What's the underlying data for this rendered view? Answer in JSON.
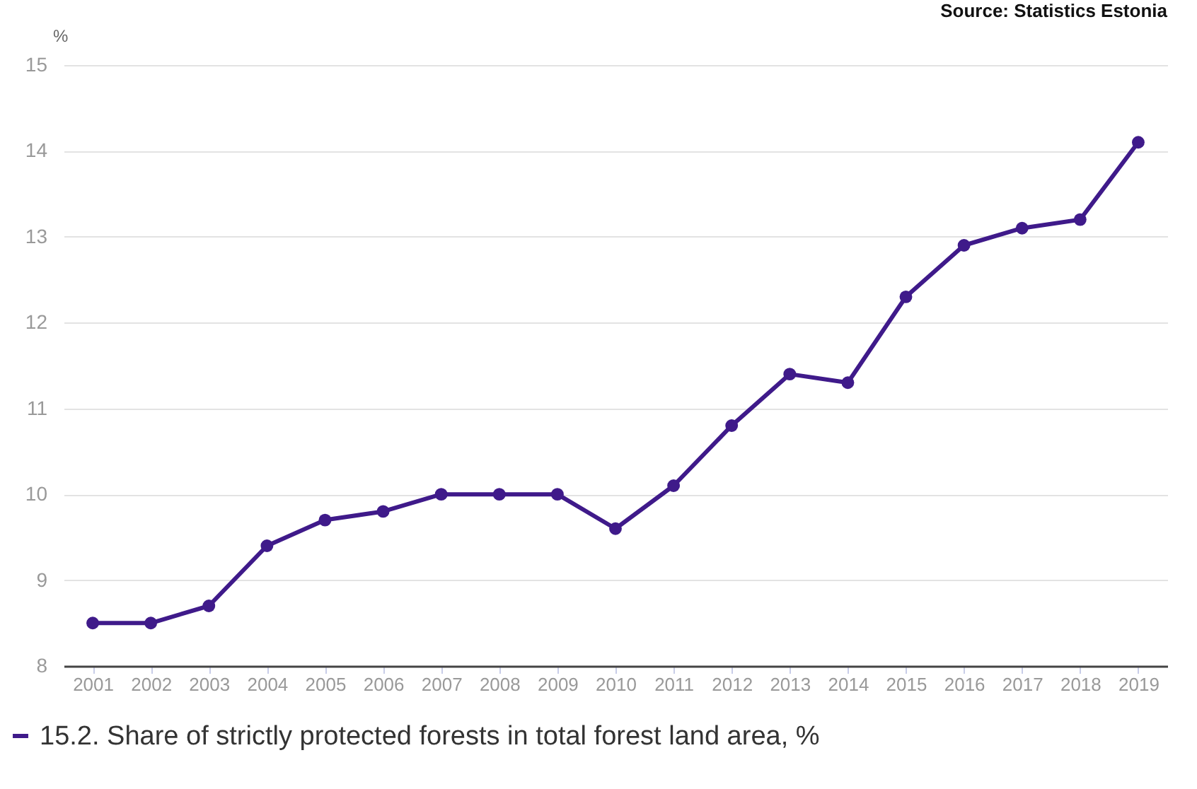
{
  "chart_data": {
    "type": "line",
    "ylabel": "%",
    "annotations": [
      "Source: Statistics Estonia"
    ],
    "categories": [
      "2001",
      "2002",
      "2003",
      "2004",
      "2005",
      "2006",
      "2007",
      "2008",
      "2009",
      "2010",
      "2011",
      "2012",
      "2013",
      "2014",
      "2015",
      "2016",
      "2017",
      "2018",
      "2019"
    ],
    "series": [
      {
        "name": "15.2. Share of strictly protected forests in total forest land area, %",
        "color": "#3f1a8a",
        "values": [
          8.5,
          8.5,
          8.7,
          9.4,
          9.7,
          9.8,
          10.0,
          10.0,
          10.0,
          9.6,
          10.1,
          10.8,
          11.4,
          11.3,
          12.3,
          12.9,
          13.1,
          13.2,
          14.1
        ]
      }
    ],
    "ylim": [
      8,
      15
    ],
    "yticks": [
      8,
      9,
      10,
      11,
      12,
      13,
      14,
      15
    ],
    "grid": "y",
    "legend": "bottom left",
    "marker": "circle",
    "line_style": "solid"
  }
}
